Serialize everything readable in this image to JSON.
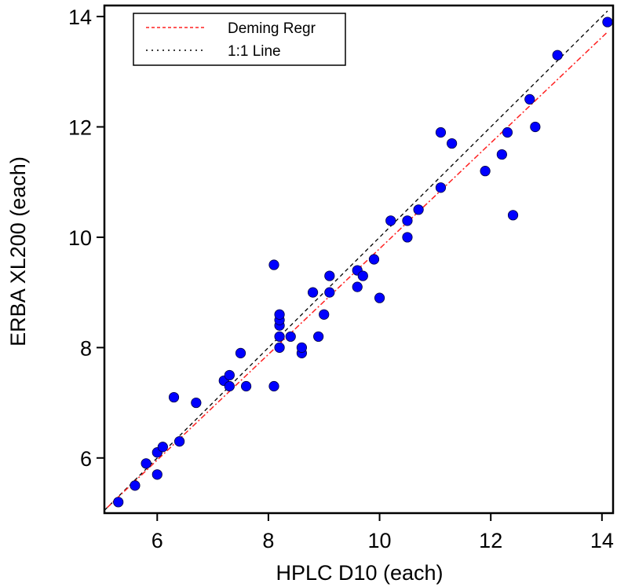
{
  "chart_data": {
    "type": "scatter",
    "xlabel": "HPLC D10 (each)",
    "ylabel": "ERBA XL200 (each)",
    "xlim": [
      5.05,
      14.2
    ],
    "ylim": [
      5.0,
      14.2
    ],
    "xticks": [
      6,
      8,
      10,
      12,
      14
    ],
    "yticks": [
      6,
      8,
      10,
      12,
      14
    ],
    "grid": false,
    "legend_position": "top-left",
    "legend": [
      {
        "label": "Deming Regr",
        "style": "dashed",
        "color": "#ff2020"
      },
      {
        "label": "1:1 Line",
        "style": "dotted",
        "color": "#000000"
      }
    ],
    "point_color": "#0000ff",
    "regression_line": {
      "from": [
        5.1,
        5.1
      ],
      "to": [
        14.1,
        13.72
      ]
    },
    "identity_line": {
      "from": [
        5.05,
        5.05
      ],
      "to": [
        14.1,
        14.1
      ]
    },
    "points": [
      [
        5.3,
        5.2
      ],
      [
        5.6,
        5.5
      ],
      [
        5.8,
        5.9
      ],
      [
        6.0,
        5.7
      ],
      [
        6.0,
        6.1
      ],
      [
        6.1,
        6.2
      ],
      [
        6.3,
        7.1
      ],
      [
        6.4,
        6.3
      ],
      [
        6.7,
        7.0
      ],
      [
        7.2,
        7.4
      ],
      [
        7.3,
        7.3
      ],
      [
        7.3,
        7.5
      ],
      [
        7.5,
        7.9
      ],
      [
        7.6,
        7.3
      ],
      [
        8.1,
        7.3
      ],
      [
        8.1,
        9.5
      ],
      [
        8.2,
        8.0
      ],
      [
        8.2,
        8.2
      ],
      [
        8.2,
        8.4
      ],
      [
        8.2,
        8.5
      ],
      [
        8.2,
        8.6
      ],
      [
        8.4,
        8.2
      ],
      [
        8.6,
        7.9
      ],
      [
        8.6,
        8.0
      ],
      [
        8.8,
        9.0
      ],
      [
        8.9,
        8.2
      ],
      [
        9.0,
        8.6
      ],
      [
        9.1,
        9.0
      ],
      [
        9.1,
        9.3
      ],
      [
        9.6,
        9.1
      ],
      [
        9.6,
        9.4
      ],
      [
        9.7,
        9.3
      ],
      [
        9.9,
        9.6
      ],
      [
        10.0,
        8.9
      ],
      [
        10.2,
        10.3
      ],
      [
        10.5,
        10.0
      ],
      [
        10.5,
        10.3
      ],
      [
        10.7,
        10.5
      ],
      [
        11.1,
        10.9
      ],
      [
        11.1,
        11.9
      ],
      [
        11.3,
        11.7
      ],
      [
        11.9,
        11.2
      ],
      [
        12.2,
        11.5
      ],
      [
        12.3,
        11.9
      ],
      [
        12.4,
        10.4
      ],
      [
        12.7,
        12.5
      ],
      [
        12.8,
        12.0
      ],
      [
        13.2,
        13.3
      ],
      [
        14.1,
        13.9
      ]
    ]
  }
}
